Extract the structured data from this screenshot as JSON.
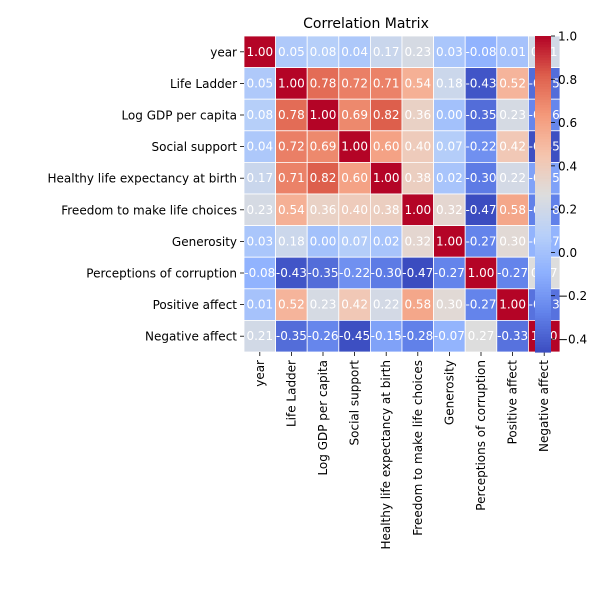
{
  "chart_data": {
    "type": "heatmap",
    "title": "Correlation Matrix",
    "xlabel": "",
    "ylabel": "",
    "colormap": "coolwarm",
    "vmin": -0.46,
    "vmax": 1.0,
    "grid": true,
    "legend": "colorbar-right",
    "labels": [
      "year",
      "Life Ladder",
      "Log GDP per capita",
      "Social support",
      "Healthy life expectancy at birth",
      "Freedom to make life choices",
      "Generosity",
      "Perceptions of corruption",
      "Positive affect",
      "Negative affect"
    ],
    "matrix": [
      [
        1.0,
        0.05,
        0.08,
        0.04,
        0.17,
        0.23,
        0.03,
        -0.08,
        0.01,
        0.21
      ],
      [
        0.05,
        1.0,
        0.78,
        0.72,
        0.71,
        0.54,
        0.18,
        -0.43,
        0.52,
        -0.35
      ],
      [
        0.08,
        0.78,
        1.0,
        0.69,
        0.82,
        0.36,
        0.0,
        -0.35,
        0.23,
        -0.26
      ],
      [
        0.04,
        0.72,
        0.69,
        1.0,
        0.6,
        0.4,
        0.07,
        -0.22,
        0.42,
        -0.45
      ],
      [
        0.17,
        0.71,
        0.82,
        0.6,
        1.0,
        0.38,
        0.02,
        -0.3,
        0.22,
        -0.15
      ],
      [
        0.23,
        0.54,
        0.36,
        0.4,
        0.38,
        1.0,
        0.32,
        -0.47,
        0.58,
        -0.28
      ],
      [
        0.03,
        0.18,
        0.0,
        0.07,
        0.02,
        0.32,
        1.0,
        -0.27,
        0.3,
        -0.07
      ],
      [
        -0.08,
        -0.43,
        -0.35,
        -0.22,
        -0.3,
        -0.47,
        -0.27,
        1.0,
        -0.27,
        0.27
      ],
      [
        0.01,
        0.52,
        0.23,
        0.42,
        0.22,
        0.58,
        0.3,
        -0.27,
        1.0,
        -0.33
      ],
      [
        0.21,
        -0.35,
        -0.26,
        -0.45,
        -0.15,
        -0.28,
        -0.07,
        0.27,
        -0.33,
        1.0
      ]
    ],
    "colorbar_ticks": [
      -0.4,
      -0.2,
      0.0,
      0.2,
      0.4,
      0.6,
      0.8,
      1.0
    ]
  }
}
